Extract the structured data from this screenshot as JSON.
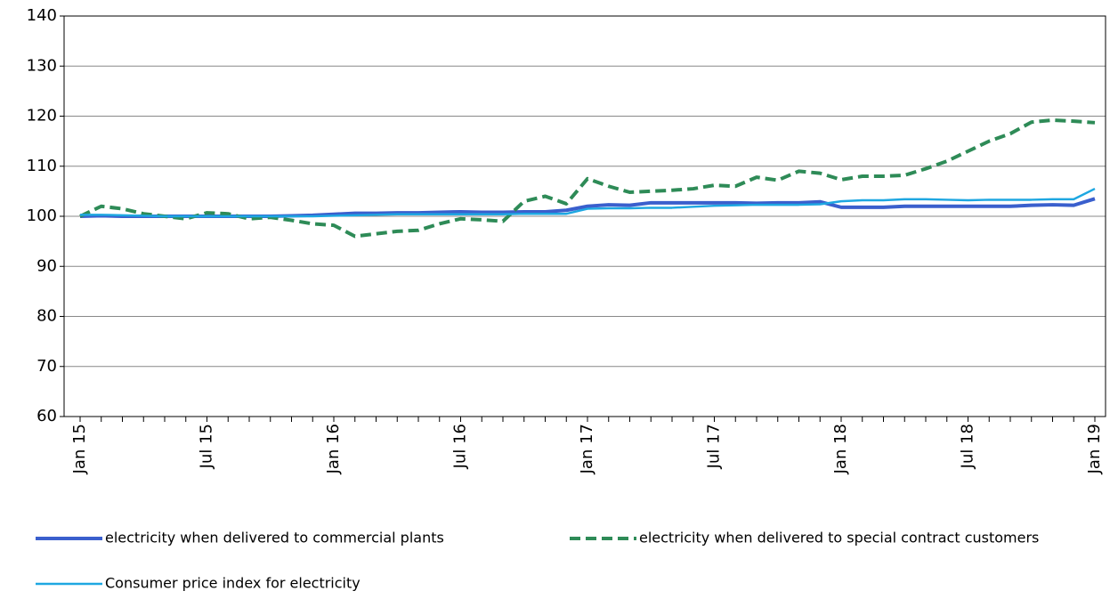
{
  "chart_data": {
    "type": "line",
    "categories": [
      "Jan 15",
      null,
      null,
      null,
      null,
      null,
      "Jul 15",
      null,
      null,
      null,
      null,
      null,
      "Jan 16",
      null,
      null,
      null,
      null,
      null,
      "Jul 16",
      null,
      null,
      null,
      null,
      null,
      "Jan 17",
      null,
      null,
      null,
      null,
      null,
      "Jul 17",
      null,
      null,
      null,
      null,
      null,
      "Jan 18",
      null,
      null,
      null,
      null,
      null,
      "Jul 18",
      null,
      null,
      null,
      null,
      null,
      "Jan 19"
    ],
    "series": [
      {
        "name": "electricity when delivered to commercial plants",
        "color": "#3a5fcd",
        "dash": false,
        "values": [
          100,
          100.1,
          100,
          100,
          100,
          100,
          100,
          100,
          100,
          100,
          100.1,
          100.2,
          100.4,
          100.6,
          100.6,
          100.7,
          100.7,
          100.8,
          100.9,
          100.8,
          100.8,
          100.9,
          100.9,
          101.2,
          102,
          102.3,
          102.2,
          102.7,
          102.7,
          102.7,
          102.7,
          102.7,
          102.6,
          102.7,
          102.7,
          102.9,
          101.8,
          101.8,
          101.8,
          102,
          102,
          102,
          102,
          102,
          102,
          102.2,
          102.3,
          102.2,
          103.5
        ]
      },
      {
        "name": "electricity when delivered to special contract customers",
        "color": "#2e8b57",
        "dash": true,
        "values": [
          100,
          102,
          101.5,
          100.5,
          100,
          99.5,
          100.7,
          100.5,
          99.5,
          99.8,
          99.2,
          98.5,
          98.2,
          96,
          96.5,
          97,
          97.2,
          98.5,
          99.5,
          99.3,
          99,
          103,
          104,
          102.5,
          107.5,
          106,
          104.8,
          105,
          105.2,
          105.5,
          106.2,
          106,
          107.8,
          107.2,
          109,
          108.6,
          107.3,
          108,
          108,
          108.2,
          109.5,
          111,
          113,
          115,
          116.5,
          118.8,
          119.2,
          119,
          118.7
        ]
      },
      {
        "name": "Consumer price index for electricity",
        "color": "#1ea7e1",
        "dash": false,
        "values": [
          100.3,
          100.3,
          100.2,
          100.1,
          100,
          100,
          100,
          100,
          100,
          100,
          100,
          100,
          100.1,
          100.2,
          100.3,
          100.4,
          100.4,
          100.4,
          100.4,
          100.4,
          100.4,
          100.5,
          100.5,
          100.5,
          101.5,
          101.6,
          101.6,
          101.7,
          101.7,
          101.9,
          102.1,
          102.2,
          102.3,
          102.3,
          102.3,
          102.4,
          103,
          103.2,
          103.2,
          103.4,
          103.4,
          103.3,
          103.2,
          103.3,
          103.3,
          103.3,
          103.4,
          103.4,
          105.5
        ]
      }
    ],
    "ylim": [
      60,
      140
    ],
    "yticks": [
      60,
      70,
      80,
      90,
      100,
      110,
      120,
      130,
      140
    ],
    "grid": true
  }
}
